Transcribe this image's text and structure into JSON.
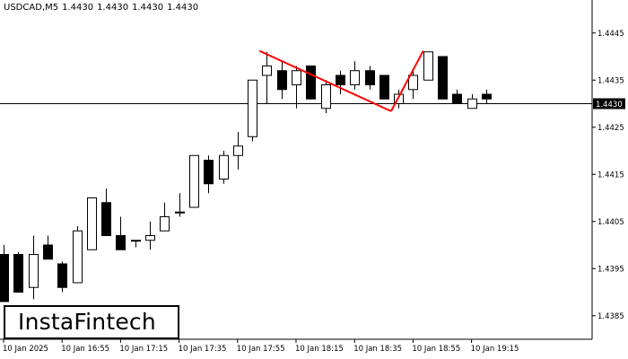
{
  "header": {
    "symbol": "USDCAD,M5",
    "ohlc": [
      "1.4430",
      "1.4430",
      "1.4430",
      "1.4430"
    ]
  },
  "logo": {
    "text": "InstaFintech"
  },
  "current_price_label": "1.4430",
  "colors": {
    "background": "#ffffff",
    "candle_up": "#ffffff",
    "candle_down": "#000000",
    "candle_outline": "#000000",
    "pattern_line": "#ff0000",
    "price_label_bg": "#000000",
    "price_label_text": "#ffffff"
  },
  "chart_data": {
    "type": "candlestick",
    "title": "USDCAD,M5",
    "ylim": [
      1.438,
      1.4452
    ],
    "y_ticks": [
      "1.4445",
      "1.4435",
      "1.4425",
      "1.4415",
      "1.4405",
      "1.4395",
      "1.4385"
    ],
    "x_tick_labels": [
      {
        "i": 0,
        "label": "10 Jan 2025"
      },
      {
        "i": 4,
        "label": "10 Jan 16:55"
      },
      {
        "i": 8,
        "label": "10 Jan 17:15"
      },
      {
        "i": 12,
        "label": "10 Jan 17:35"
      },
      {
        "i": 16,
        "label": "10 Jan 17:55"
      },
      {
        "i": 20,
        "label": "10 Jan 18:15"
      },
      {
        "i": 24,
        "label": "10 Jan 18:35"
      },
      {
        "i": 28,
        "label": "10 Jan 18:55"
      },
      {
        "i": 32,
        "label": "10 Jan 19:15"
      }
    ],
    "candles": [
      {
        "o": 1.4398,
        "h": 1.44,
        "l": 1.4388,
        "c": 1.4388
      },
      {
        "o": 1.4398,
        "h": 1.43985,
        "l": 1.439,
        "c": 1.439
      },
      {
        "o": 1.4391,
        "h": 1.4402,
        "l": 1.43885,
        "c": 1.4398
      },
      {
        "o": 1.44,
        "h": 1.4402,
        "l": 1.4397,
        "c": 1.4397
      },
      {
        "o": 1.4396,
        "h": 1.43965,
        "l": 1.439,
        "c": 1.4391
      },
      {
        "o": 1.4392,
        "h": 1.4404,
        "l": 1.4392,
        "c": 1.4403
      },
      {
        "o": 1.4399,
        "h": 1.441,
        "l": 1.4399,
        "c": 1.441
      },
      {
        "o": 1.4409,
        "h": 1.4412,
        "l": 1.4402,
        "c": 1.4402
      },
      {
        "o": 1.4402,
        "h": 1.4406,
        "l": 1.4399,
        "c": 1.4399
      },
      {
        "o": 1.4401,
        "h": 1.4401,
        "l": 1.43995,
        "c": 1.4401
      },
      {
        "o": 1.4401,
        "h": 1.4405,
        "l": 1.4399,
        "c": 1.4402
      },
      {
        "o": 1.4403,
        "h": 1.4409,
        "l": 1.4403,
        "c": 1.4406
      },
      {
        "o": 1.4407,
        "h": 1.4411,
        "l": 1.4406,
        "c": 1.4407
      },
      {
        "o": 1.4408,
        "h": 1.4419,
        "l": 1.4408,
        "c": 1.4419
      },
      {
        "o": 1.4418,
        "h": 1.4419,
        "l": 1.4411,
        "c": 1.4413
      },
      {
        "o": 1.4414,
        "h": 1.442,
        "l": 1.4413,
        "c": 1.4419
      },
      {
        "o": 1.4419,
        "h": 1.4424,
        "l": 1.4416,
        "c": 1.4421
      },
      {
        "o": 1.4423,
        "h": 1.4435,
        "l": 1.4422,
        "c": 1.4435
      },
      {
        "o": 1.4436,
        "h": 1.4441,
        "l": 1.443,
        "c": 1.4438
      },
      {
        "o": 1.4437,
        "h": 1.4439,
        "l": 1.4431,
        "c": 1.4433
      },
      {
        "o": 1.4434,
        "h": 1.4438,
        "l": 1.4429,
        "c": 1.4437
      },
      {
        "o": 1.4438,
        "h": 1.4438,
        "l": 1.4431,
        "c": 1.4431
      },
      {
        "o": 1.4429,
        "h": 1.4435,
        "l": 1.4428,
        "c": 1.4434
      },
      {
        "o": 1.4436,
        "h": 1.4437,
        "l": 1.4432,
        "c": 1.4434
      },
      {
        "o": 1.4434,
        "h": 1.4439,
        "l": 1.4433,
        "c": 1.4437
      },
      {
        "o": 1.4437,
        "h": 1.4438,
        "l": 1.4433,
        "c": 1.4434
      },
      {
        "o": 1.4436,
        "h": 1.4436,
        "l": 1.4431,
        "c": 1.4431
      },
      {
        "o": 1.443,
        "h": 1.4433,
        "l": 1.4429,
        "c": 1.4432
      },
      {
        "o": 1.4433,
        "h": 1.4437,
        "l": 1.4431,
        "c": 1.4436
      },
      {
        "o": 1.4435,
        "h": 1.4441,
        "l": 1.4435,
        "c": 1.4441
      },
      {
        "o": 1.444,
        "h": 1.444,
        "l": 1.4431,
        "c": 1.4431
      },
      {
        "o": 1.4432,
        "h": 1.4433,
        "l": 1.443,
        "c": 1.443
      },
      {
        "o": 1.4429,
        "h": 1.4432,
        "l": 1.4429,
        "c": 1.4431
      },
      {
        "o": 1.4432,
        "h": 1.4433,
        "l": 1.443,
        "c": 1.4431
      }
    ],
    "horizontal_line": 1.443,
    "pattern_lines": [
      {
        "from": {
          "i": 17.5,
          "y": 1.44412
        },
        "to": {
          "i": 26.5,
          "y": 1.44284
        }
      },
      {
        "from": {
          "i": 26.5,
          "y": 1.44284
        },
        "to": {
          "i": 28.7,
          "y": 1.44412
        }
      }
    ],
    "grid": false,
    "legend": "none"
  }
}
